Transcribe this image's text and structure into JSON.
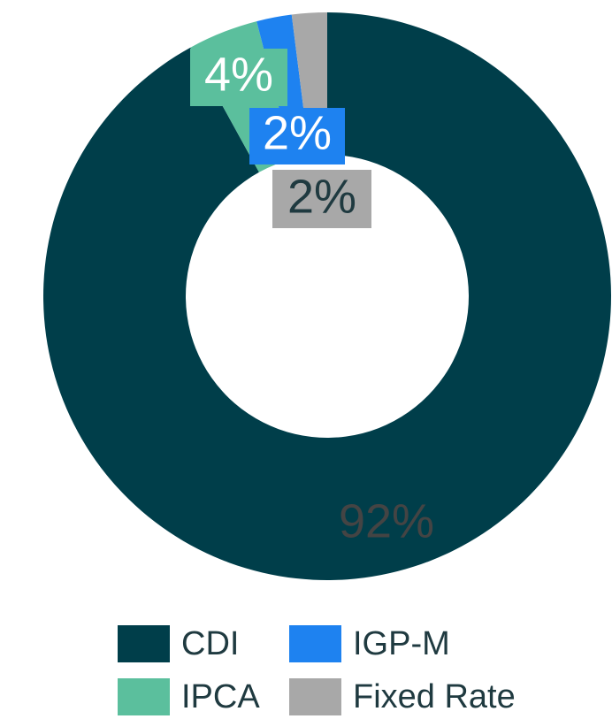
{
  "chart_data": {
    "type": "donut",
    "categories": [
      "CDI",
      "IPCA",
      "IGP-M",
      "Fixed Rate"
    ],
    "values": [
      92,
      4,
      2,
      2
    ],
    "value_labels": [
      "92%",
      "4%",
      "2%",
      "2%"
    ],
    "colors": [
      "#003e4a",
      "#5bbf9d",
      "#1e82f0",
      "#a8a8a8"
    ]
  }
}
